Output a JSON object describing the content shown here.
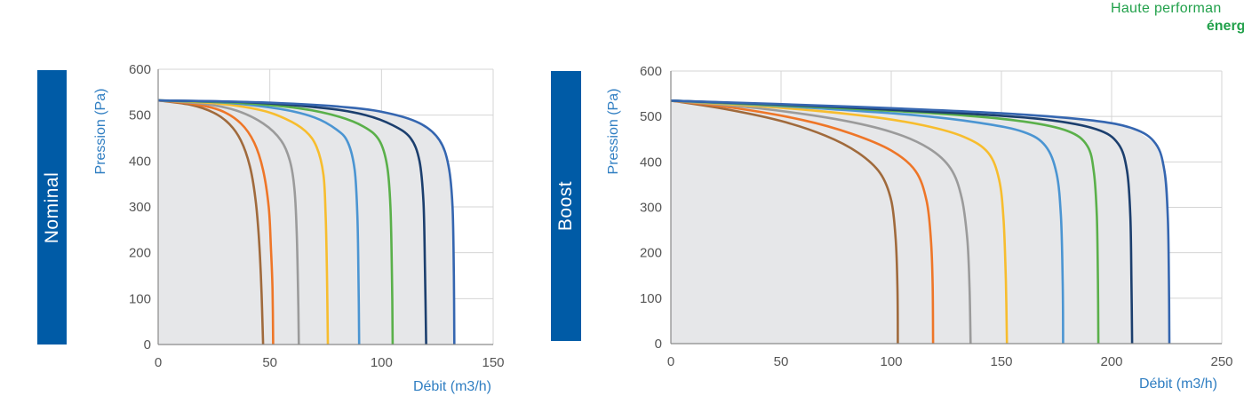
{
  "brand": {
    "line1": "Haute performan",
    "line2": "énergétique"
  },
  "panels": [
    {
      "tab_label": "Nominal"
    },
    {
      "tab_label": "Boost"
    }
  ],
  "colors": {
    "tab": "#005ba6",
    "area_fill": "#e6e7e9",
    "axis_title": "#2f7ec2",
    "series": [
      "#a06a3c",
      "#ee7628",
      "#9b9b9b",
      "#f7bd2e",
      "#4b95d2",
      "#5ab04a",
      "#1c3f6e",
      "#3566b0"
    ]
  },
  "chart_data": [
    {
      "type": "line",
      "title": "",
      "xlabel": "Débit (m3/h)",
      "ylabel": "Pression (Pa)",
      "xlim": [
        0,
        150
      ],
      "ylim": [
        0,
        600
      ],
      "xticks": [
        "0",
        "50",
        "100",
        "150"
      ],
      "yticks": [
        "0",
        "100",
        "200",
        "300",
        "400",
        "500",
        "600"
      ],
      "grid": true,
      "series": [
        {
          "points": [
            [
              0,
              532
            ],
            [
              15,
              522
            ],
            [
              25,
              505
            ],
            [
              32,
              480
            ],
            [
              37,
              445
            ],
            [
              41,
              390
            ],
            [
              43.5,
              320
            ],
            [
              45,
              240
            ],
            [
              46,
              150
            ],
            [
              46.5,
              80
            ],
            [
              47,
              0
            ]
          ]
        },
        {
          "points": [
            [
              0,
              532
            ],
            [
              15,
              525
            ],
            [
              28,
              510
            ],
            [
              37,
              482
            ],
            [
              43,
              440
            ],
            [
              47,
              380
            ],
            [
              49.5,
              300
            ],
            [
              50.5,
              210
            ],
            [
              51.2,
              120
            ],
            [
              51.5,
              0
            ]
          ]
        },
        {
          "points": [
            [
              0,
              532
            ],
            [
              20,
              525
            ],
            [
              35,
              510
            ],
            [
              47,
              482
            ],
            [
              55,
              445
            ],
            [
              59,
              400
            ],
            [
              61,
              340
            ],
            [
              62,
              250
            ],
            [
              62.6,
              130
            ],
            [
              63,
              0
            ]
          ]
        },
        {
          "points": [
            [
              0,
              532
            ],
            [
              25,
              526
            ],
            [
              45,
              512
            ],
            [
              57,
              492
            ],
            [
              66,
              465
            ],
            [
              71,
              430
            ],
            [
              74,
              370
            ],
            [
              75,
              280
            ],
            [
              75.6,
              150
            ],
            [
              76,
              0
            ]
          ]
        },
        {
          "points": [
            [
              0,
              532
            ],
            [
              30,
              527
            ],
            [
              55,
              513
            ],
            [
              70,
              495
            ],
            [
              80,
              468
            ],
            [
              85,
              440
            ],
            [
              88,
              380
            ],
            [
              89.2,
              280
            ],
            [
              89.7,
              150
            ],
            [
              90,
              0
            ]
          ]
        },
        {
          "points": [
            [
              0,
              532
            ],
            [
              35,
              527
            ],
            [
              63,
              515
            ],
            [
              80,
              498
            ],
            [
              92,
              475
            ],
            [
              99,
              445
            ],
            [
              102.5,
              390
            ],
            [
              104,
              300
            ],
            [
              104.7,
              150
            ],
            [
              105,
              0
            ]
          ]
        },
        {
          "points": [
            [
              0,
              532
            ],
            [
              40,
              528
            ],
            [
              75,
              515
            ],
            [
              93,
              500
            ],
            [
              105,
              478
            ],
            [
              113,
              450
            ],
            [
              117,
              400
            ],
            [
              118.8,
              310
            ],
            [
              119.5,
              160
            ],
            [
              120,
              0
            ]
          ]
        },
        {
          "points": [
            [
              0,
              532
            ],
            [
              45,
              528
            ],
            [
              85,
              517
            ],
            [
              105,
              502
            ],
            [
              118,
              480
            ],
            [
              126,
              445
            ],
            [
              130,
              390
            ],
            [
              131.8,
              300
            ],
            [
              132.4,
              150
            ],
            [
              132.6,
              0
            ]
          ]
        }
      ]
    },
    {
      "type": "line",
      "title": "",
      "xlabel": "Débit (m3/h)",
      "ylabel": "Pression (Pa)",
      "xlim": [
        0,
        250
      ],
      "ylim": [
        0,
        600
      ],
      "xticks": [
        "0",
        "50",
        "100",
        "150",
        "200",
        "250"
      ],
      "yticks": [
        "0",
        "100",
        "200",
        "300",
        "400",
        "500",
        "600"
      ],
      "grid": true,
      "series": [
        {
          "points": [
            [
              0,
              535
            ],
            [
              25,
              516
            ],
            [
              50,
              490
            ],
            [
              70,
              458
            ],
            [
              85,
              420
            ],
            [
              95,
              375
            ],
            [
              100,
              315
            ],
            [
              102,
              230
            ],
            [
              102.8,
              130
            ],
            [
              103,
              0
            ]
          ]
        },
        {
          "points": [
            [
              0,
              535
            ],
            [
              30,
              518
            ],
            [
              60,
              492
            ],
            [
              82,
              462
            ],
            [
              100,
              425
            ],
            [
              111,
              380
            ],
            [
              116,
              315
            ],
            [
              118,
              230
            ],
            [
              118.8,
              130
            ],
            [
              119,
              0
            ]
          ]
        },
        {
          "points": [
            [
              0,
              535
            ],
            [
              40,
              518
            ],
            [
              75,
              494
            ],
            [
              100,
              466
            ],
            [
              117,
              430
            ],
            [
              127,
              385
            ],
            [
              132,
              320
            ],
            [
              134.5,
              230
            ],
            [
              135.5,
              130
            ],
            [
              136,
              0
            ]
          ]
        },
        {
          "points": [
            [
              0,
              535
            ],
            [
              50,
              519
            ],
            [
              90,
              500
            ],
            [
              115,
              480
            ],
            [
              133,
              455
            ],
            [
              144,
              420
            ],
            [
              149,
              360
            ],
            [
              151,
              270
            ],
            [
              152,
              140
            ],
            [
              152.5,
              0
            ]
          ]
        },
        {
          "points": [
            [
              0,
              535
            ],
            [
              60,
              520
            ],
            [
              110,
              503
            ],
            [
              140,
              486
            ],
            [
              160,
              466
            ],
            [
              170,
              435
            ],
            [
              175,
              375
            ],
            [
              177,
              280
            ],
            [
              177.8,
              140
            ],
            [
              178,
              0
            ]
          ]
        },
        {
          "points": [
            [
              0,
              535
            ],
            [
              70,
              520
            ],
            [
              125,
              505
            ],
            [
              160,
              489
            ],
            [
              180,
              468
            ],
            [
              189,
              435
            ],
            [
              192,
              375
            ],
            [
              193.3,
              280
            ],
            [
              193.8,
              140
            ],
            [
              194,
              0
            ]
          ]
        },
        {
          "points": [
            [
              0,
              535
            ],
            [
              75,
              521
            ],
            [
              135,
              506
            ],
            [
              170,
              493
            ],
            [
              193,
              472
            ],
            [
              203,
              440
            ],
            [
              207,
              380
            ],
            [
              208.5,
              280
            ],
            [
              209,
              140
            ],
            [
              209.3,
              0
            ]
          ]
        },
        {
          "points": [
            [
              0,
              535
            ],
            [
              80,
              522
            ],
            [
              150,
              507
            ],
            [
              190,
              492
            ],
            [
              210,
              473
            ],
            [
              220,
              440
            ],
            [
              224,
              380
            ],
            [
              225.5,
              280
            ],
            [
              226,
              140
            ],
            [
              226.2,
              0
            ]
          ]
        }
      ]
    }
  ]
}
